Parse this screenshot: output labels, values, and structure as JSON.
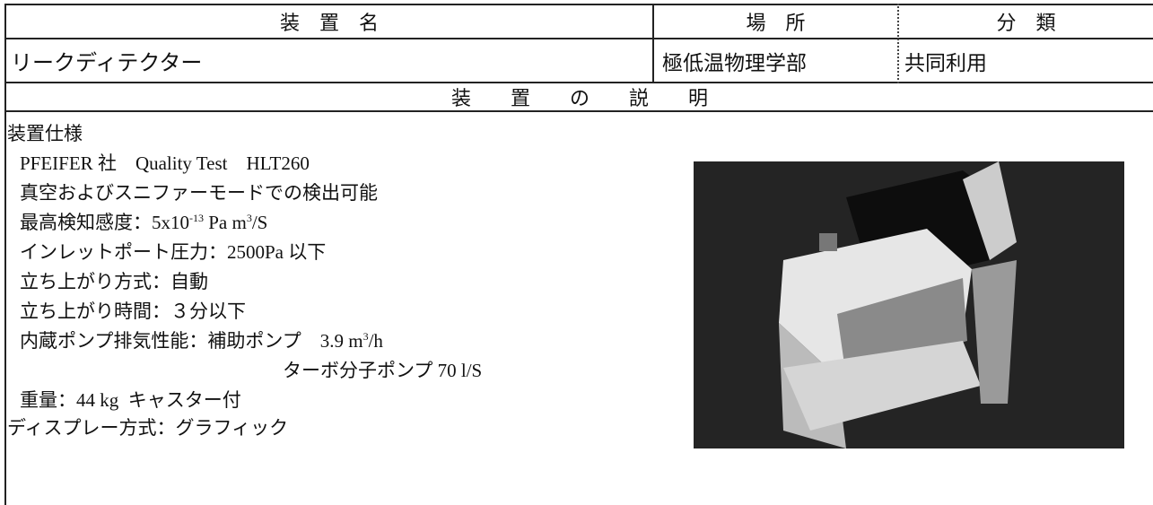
{
  "table": {
    "header": [
      "装　置　名",
      "場　所",
      "分　類"
    ],
    "row": [
      "リークディテクター",
      "極低温物理学部",
      "共同利用"
    ],
    "section": "装　　置　　の　　説　　明"
  },
  "spec": {
    "title": "装置仕様",
    "items": [
      {
        "parts": [
          {
            "text": "PFEIFER 社　Quality Test　HLT260"
          }
        ]
      },
      {
        "parts": [
          {
            "text": "真空およびスニファーモードでの検出可能"
          }
        ]
      },
      {
        "parts": [
          {
            "text": "最高検知感度：5x10"
          },
          {
            "text": "-13",
            "sup": true
          },
          {
            "text": " Pa m"
          },
          {
            "text": "3",
            "sup": true
          },
          {
            "text": "/S"
          }
        ]
      },
      {
        "parts": [
          {
            "text": "インレットポート圧力：2500Pa 以下"
          }
        ]
      },
      {
        "parts": [
          {
            "text": "立ち上がり方式：自動"
          }
        ]
      },
      {
        "parts": [
          {
            "text": "立ち上がり時間：３分以下"
          }
        ]
      },
      {
        "parts": [
          {
            "text": "内蔵ポンプ排気性能：補助ポンプ　3.9 m"
          },
          {
            "text": "3",
            "sup": true
          },
          {
            "text": "/h"
          }
        ],
        "continuation": [
          {
            "text": "ターボ分子ポンプ 70 l/S"
          }
        ]
      },
      {
        "parts": [
          {
            "text": "重量：44 kg  キャスター付"
          }
        ]
      }
    ],
    "footer": "ディスプレー方式：グラフィック"
  }
}
